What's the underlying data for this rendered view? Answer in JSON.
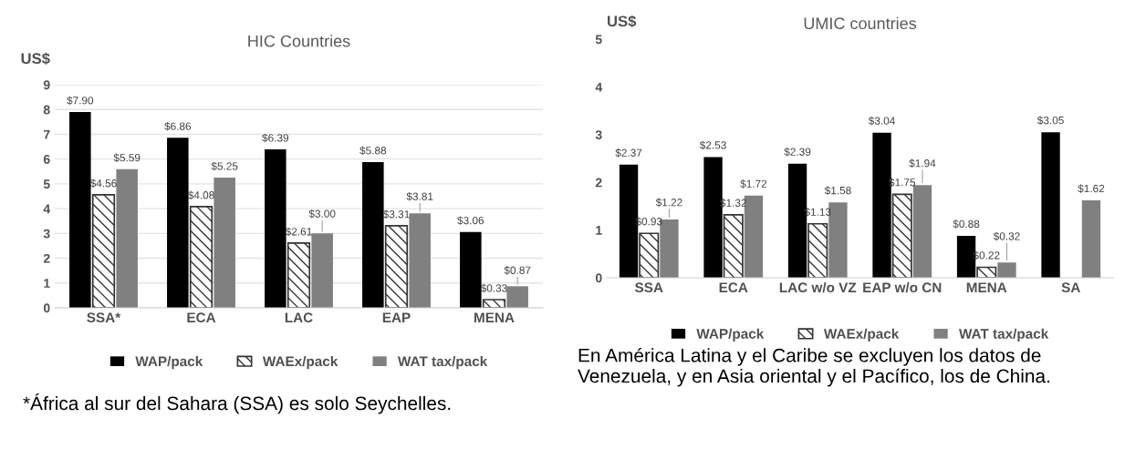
{
  "chart_data": [
    {
      "type": "bar",
      "title": "HIC Countries",
      "ylabel": "US$",
      "categories": [
        "SSA*",
        "ECA",
        "LAC",
        "EAP",
        "MENA"
      ],
      "ylim": [
        0,
        9
      ],
      "yticks": [
        0,
        1,
        2,
        3,
        4,
        5,
        6,
        7,
        8,
        9
      ],
      "grid": "y",
      "legend": "bottom",
      "series": [
        {
          "name": "WAP/pack",
          "color": "#000000",
          "values": [
            7.9,
            6.86,
            6.39,
            5.88,
            3.06
          ],
          "value_labels": [
            "$7.90",
            "$6.86",
            "$6.39",
            "$5.88",
            "$3.06"
          ]
        },
        {
          "name": "WAEx/pack",
          "color": "#333333",
          "values": [
            4.56,
            4.08,
            2.61,
            3.31,
            0.33
          ],
          "value_labels": [
            "$4.56",
            "$4.08",
            "$2.61",
            "$3.31",
            "$0.33"
          ]
        },
        {
          "name": "WAT tax/pack",
          "color": "#808080",
          "values": [
            5.59,
            5.25,
            3.0,
            3.81,
            0.87
          ],
          "value_labels": [
            "$5.59",
            "$5.25",
            "$3.00",
            "$3.81",
            "$0.87"
          ]
        }
      ],
      "annotations": [
        "*África al sur del Sahara (SSA) es solo Seychelles."
      ]
    },
    {
      "type": "bar",
      "title": "UMIC countries",
      "ylabel": "US$",
      "categories": [
        "SSA",
        "ECA",
        "LAC w/o VZ",
        "EAP w/o CN",
        "MENA",
        "SA"
      ],
      "ylim": [
        0,
        5
      ],
      "yticks": [
        0,
        1,
        2,
        3,
        4,
        5
      ],
      "grid": false,
      "legend": "bottom",
      "series": [
        {
          "name": "WAP/pack",
          "color": "#000000",
          "values": [
            2.37,
            2.53,
            2.39,
            3.04,
            0.88,
            3.05
          ],
          "value_labels": [
            "$2.37",
            "$2.53",
            "$2.39",
            "$3.04",
            "$0.88",
            "$3.05"
          ]
        },
        {
          "name": "WAEx/pack",
          "color": "#333333",
          "values": [
            0.93,
            1.32,
            1.13,
            1.75,
            0.22,
            null
          ],
          "value_labels": [
            "$0.93",
            "$1.32",
            "$1.13",
            "$1.75",
            "$0.22",
            null
          ]
        },
        {
          "name": "WAT tax/pack",
          "color": "#808080",
          "values": [
            1.22,
            1.72,
            1.58,
            1.94,
            0.32,
            1.62
          ],
          "value_labels": [
            "$1.22",
            "$1.72",
            "$1.58",
            "$1.94",
            "$0.32",
            "$1.62"
          ]
        }
      ],
      "annotations": [
        "En América Latina y el Caribe se excluyen los datos de Venezuela, y en Asia oriental y el Pacífico, los de China."
      ]
    }
  ]
}
